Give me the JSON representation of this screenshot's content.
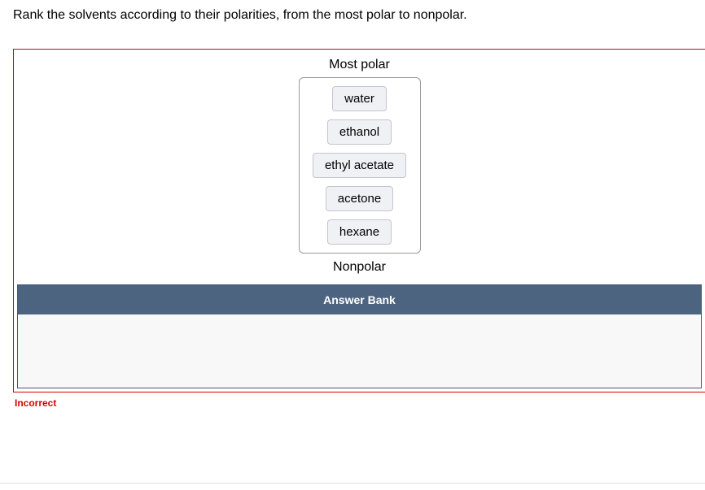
{
  "question": {
    "text": "Rank the solvents according to their polarities, from the most polar to nonpolar."
  },
  "ranking": {
    "top_label": "Most polar",
    "bottom_label": "Nonpolar",
    "items": [
      {
        "label": "water"
      },
      {
        "label": "ethanol"
      },
      {
        "label": "ethyl acetate"
      },
      {
        "label": "acetone"
      },
      {
        "label": "hexane"
      }
    ]
  },
  "answer_bank": {
    "header": "Answer Bank"
  },
  "feedback": {
    "text": "Incorrect"
  },
  "styles": {
    "error_border_color": "#d80000",
    "chip_bg": "#eff1f5",
    "chip_border": "#c2c6cc",
    "bank_header_bg": "#4c6480",
    "bank_body_bg": "#f8f8f8",
    "dropzone_border": "#999999"
  }
}
